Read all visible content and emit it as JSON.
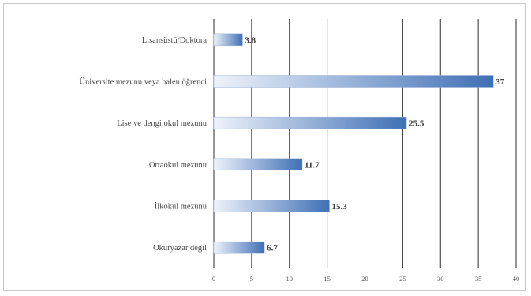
{
  "chart_data": {
    "type": "bar",
    "orientation": "horizontal",
    "categories": [
      "Lisansüstü/Doktora",
      "Üniversite mezunu veya halen öğrenci",
      "Lise ve dengi okul mezunu",
      "Ortaokul mezunu",
      "İlkokul mezunu",
      "Okuryazar değil"
    ],
    "values": [
      3.8,
      37,
      25.5,
      11.7,
      15.3,
      6.7
    ],
    "value_labels": [
      "3.8",
      "37",
      "25.5",
      "11.7",
      "15.3",
      "6.7"
    ],
    "xlim": [
      0,
      40
    ],
    "xticks": [
      "0",
      "5",
      "10",
      "15",
      "20",
      "25",
      "30",
      "35",
      "40"
    ],
    "grid": true,
    "bar_color": "#3f6fb5",
    "bar_fade_color": "#eef3fb"
  }
}
